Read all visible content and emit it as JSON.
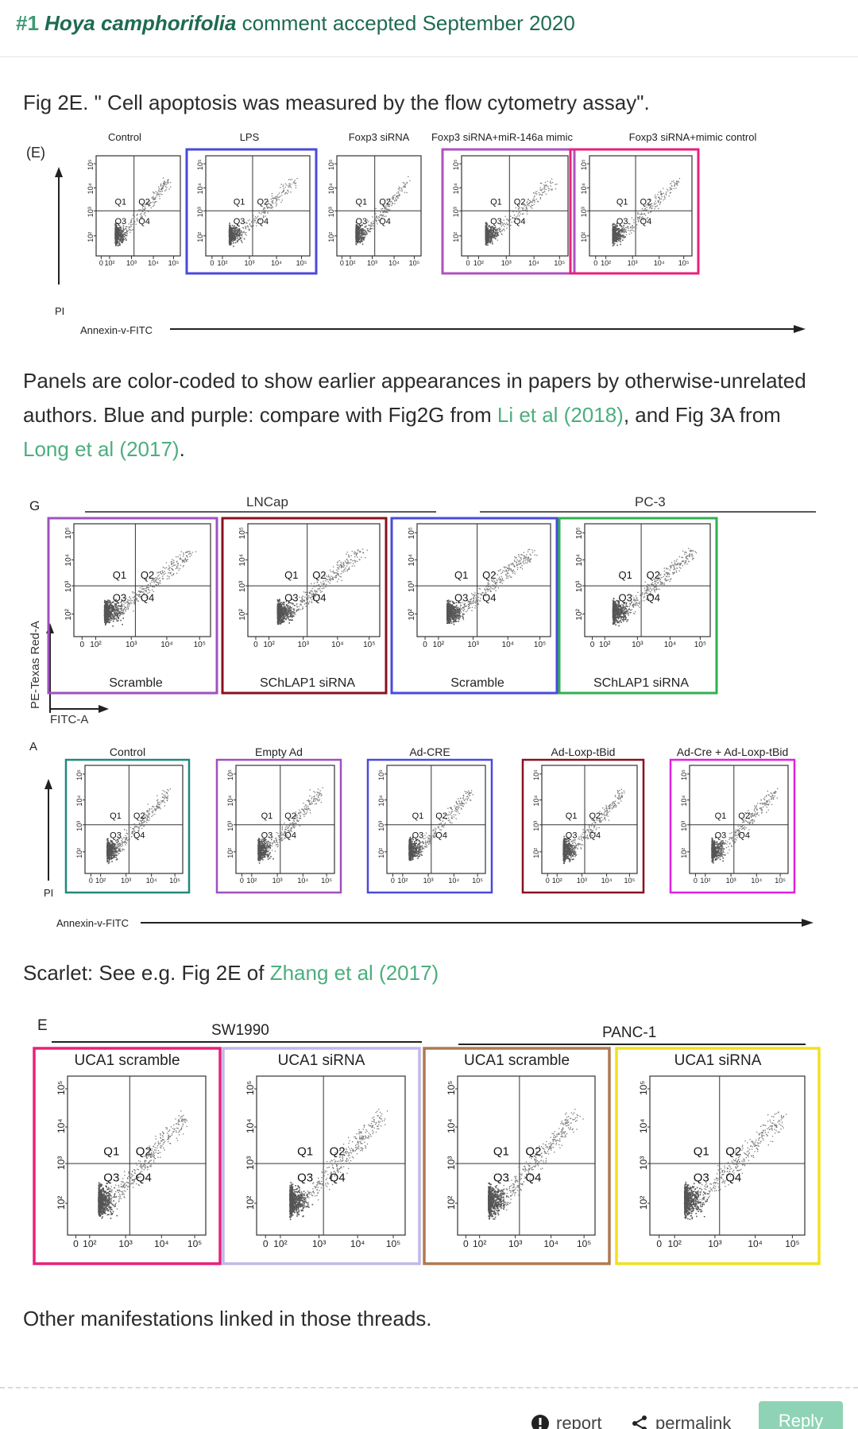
{
  "comment": {
    "number": "#1",
    "species": "Hoya camphorifolia",
    "status": "comment accepted September 2020"
  },
  "paragraphs": {
    "p1": "Fig 2E. \" Cell apoptosis was measured by the flow cytometry assay\".",
    "p2_text1": "Panels are color-coded to show earlier appearances in papers by otherwise-unrelated authors. Blue and purple: compare with Fig2G from ",
    "p2_link1": "Li et al (2018)",
    "p2_text2": ", and Fig 3A from ",
    "p2_link2": "Long et al (2017)",
    "p2_text3": ".",
    "p3_text1": "Scarlet: See e.g. Fig 2E of ",
    "p3_link": "Zhang et al (2017)",
    "p4": "Other manifestations linked in those threads."
  },
  "figure1": {
    "panel_letter": "(E)",
    "y_label": "PI",
    "x_label": "Annexin-v-FITC",
    "panels": [
      {
        "title": "Control",
        "color": ""
      },
      {
        "title": "LPS",
        "color": "#4a4adc"
      },
      {
        "title": "Foxp3 siRNA",
        "color": ""
      },
      {
        "title": "Foxp3 siRNA+miR-146a mimic",
        "color": "#b050c0"
      },
      {
        "title": "Foxp3 siRNA+mimic control",
        "color": "#e8207a"
      }
    ]
  },
  "figure2": {
    "panel_letter_g": "G",
    "group1": "LNCap",
    "group2": "PC-3",
    "y_label": "PE-Texas Red-A",
    "x_label": "FITC-A",
    "panels": [
      {
        "title": "Scramble",
        "color": "#a050c0"
      },
      {
        "title": "SChLAP1 siRNA",
        "color": "#8a1020"
      },
      {
        "title": "Scramble",
        "color": "#4a4adc"
      },
      {
        "title": "SChLAP1 siRNA",
        "color": "#30b050"
      }
    ]
  },
  "figure3": {
    "panel_letter_a": "A",
    "y_label": "PI",
    "x_label": "Annexin-v-FITC",
    "panels": [
      {
        "title": "Control",
        "color": "#208880"
      },
      {
        "title": "Empty Ad",
        "color": "#a050c0"
      },
      {
        "title": "Ad-CRE",
        "color": "#4a4adc"
      },
      {
        "title": "Ad-Loxp-tBid",
        "color": "#8a1020"
      },
      {
        "title": "Ad-Cre + Ad-Loxp-tBid",
        "color": "#e020e0"
      }
    ]
  },
  "figure4": {
    "panel_letter_e": "E",
    "group1": "SW1990",
    "group2": "PANC-1",
    "panels": [
      {
        "title": "UCA1 scramble",
        "color": "#e8207a"
      },
      {
        "title": "UCA1 siRNA",
        "color": "#c0b8e8"
      },
      {
        "title": "UCA1 scramble",
        "color": "#b07850"
      },
      {
        "title": "UCA1 siRNA",
        "color": "#f0e020"
      }
    ]
  },
  "quadrants": {
    "q1": "Q1",
    "q2": "Q2",
    "q3": "Q3",
    "q4": "Q4"
  },
  "ticks": {
    "t0": "0",
    "t2": "10²",
    "t3": "10³",
    "t4": "10⁴",
    "t5": "10⁵"
  },
  "footer": {
    "report": "report",
    "permalink": "permalink",
    "reply": "Reply"
  },
  "colors": {
    "header_text": "#1e6b52",
    "link": "#4cae7e",
    "reply_button": "#8fd3b6"
  }
}
